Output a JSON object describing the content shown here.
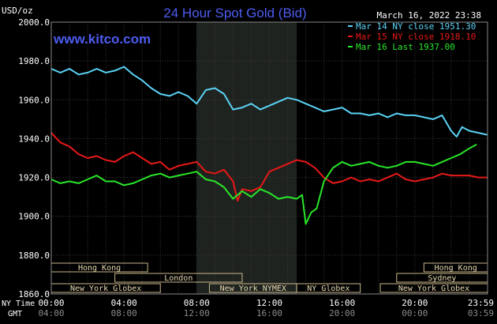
{
  "chart_data": {
    "type": "line",
    "title": "24 Hour Spot Gold (Bid)",
    "watermark": "www.kitco.com",
    "date_label": "March 16, 2022 23:38",
    "ylabel": "USD/oz",
    "ylim": [
      1860,
      2000
    ],
    "yticks": [
      2000,
      1980,
      1960,
      1940,
      1920,
      1900,
      1880,
      1860
    ],
    "ytick_labels": [
      "2000.0",
      "1980.0",
      "1960.0",
      "1940.0",
      "1920.0",
      "1900.0",
      "1880.0",
      "1860.0"
    ],
    "xlim": [
      0,
      24
    ],
    "xticks": [
      0,
      4,
      8,
      12,
      16,
      20,
      24
    ],
    "ny_time_label": "NY Time",
    "gmt_label": "GMT",
    "ny_tick_labels": [
      "00:00",
      "04:00",
      "08:00",
      "12:00",
      "16:00",
      "20:00",
      "23:59"
    ],
    "gmt_tick_labels": [
      "04:00",
      "08:00",
      "12:00",
      "16:00",
      "20:00",
      "00:00",
      "03:59"
    ],
    "highlight_range": [
      8,
      13.5
    ],
    "grid": true,
    "legend_position": "top-right",
    "series": [
      {
        "name": "Mar 14 NY close 1951.30",
        "color": "#5ad2f5",
        "x": [
          0,
          0.5,
          1,
          1.5,
          2,
          2.5,
          3,
          3.5,
          4,
          4.5,
          5,
          5.5,
          6,
          6.5,
          7,
          7.5,
          8,
          8.5,
          9,
          9.5,
          10,
          10.5,
          11,
          11.5,
          12,
          12.5,
          13,
          13.5,
          14,
          14.5,
          15,
          15.5,
          16,
          16.5,
          17,
          17.5,
          18,
          18.5,
          19,
          19.5,
          20,
          20.5,
          21,
          21.5,
          22,
          22.3,
          22.6,
          23,
          23.5,
          23.98
        ],
        "y": [
          1976,
          1974,
          1976,
          1973,
          1974,
          1976,
          1974,
          1975,
          1977,
          1973,
          1970,
          1966,
          1963,
          1962,
          1964,
          1962,
          1958,
          1965,
          1966,
          1963,
          1955,
          1956,
          1958,
          1955,
          1957,
          1959,
          1961,
          1960,
          1958,
          1956,
          1954,
          1955,
          1956,
          1953,
          1953,
          1952,
          1953,
          1951,
          1953,
          1952,
          1952,
          1951,
          1950,
          1952,
          1944,
          1941,
          1946,
          1944,
          1943,
          1942
        ]
      },
      {
        "name": "Mar 15 NY close 1918.10",
        "color": "#e81818",
        "x": [
          0,
          0.5,
          1,
          1.5,
          2,
          2.5,
          3,
          3.5,
          4,
          4.5,
          5,
          5.5,
          6,
          6.5,
          7,
          7.5,
          8,
          8.5,
          9,
          9.5,
          10,
          10.25,
          10.5,
          11,
          11.5,
          12,
          12.5,
          13,
          13.5,
          14,
          14.5,
          15,
          15.5,
          16,
          16.5,
          17,
          17.5,
          18,
          18.5,
          19,
          19.5,
          20,
          20.5,
          21,
          21.5,
          22,
          22.5,
          23,
          23.5,
          23.98
        ],
        "y": [
          1943,
          1938,
          1936,
          1932,
          1930,
          1931,
          1929,
          1928,
          1931,
          1933,
          1930,
          1927,
          1928,
          1924,
          1926,
          1927,
          1928,
          1923,
          1922,
          1924,
          1918,
          1908,
          1914,
          1913,
          1915,
          1923,
          1925,
          1927,
          1929,
          1928,
          1925,
          1920,
          1917,
          1918,
          1920,
          1918,
          1919,
          1918,
          1920,
          1922,
          1919,
          1918,
          1919,
          1920,
          1922,
          1921,
          1921,
          1921,
          1920,
          1920
        ]
      },
      {
        "name": "Mar 16 Last 1937.00",
        "color": "#29e629",
        "x": [
          0,
          0.5,
          1,
          1.5,
          2,
          2.5,
          3,
          3.5,
          4,
          4.5,
          5,
          5.5,
          6,
          6.5,
          7,
          7.5,
          8,
          8.5,
          9,
          9.5,
          10,
          10.5,
          11,
          11.5,
          12,
          12.5,
          13,
          13.5,
          13.8,
          14,
          14.3,
          14.6,
          15,
          15.5,
          16,
          16.5,
          17,
          17.5,
          18,
          18.5,
          19,
          19.5,
          20,
          20.5,
          21,
          21.5,
          22,
          22.5,
          23,
          23.4
        ],
        "y": [
          1919,
          1917,
          1918,
          1917,
          1919,
          1921,
          1918,
          1918,
          1916,
          1917,
          1919,
          1921,
          1922,
          1920,
          1921,
          1922,
          1923,
          1919,
          1918,
          1915,
          1909,
          1913,
          1910,
          1914,
          1912,
          1909,
          1910,
          1909,
          1911,
          1896,
          1902,
          1904,
          1918,
          1925,
          1928,
          1926,
          1927,
          1928,
          1926,
          1925,
          1926,
          1928,
          1928,
          1927,
          1926,
          1928,
          1930,
          1932,
          1935,
          1937
        ]
      }
    ],
    "sessions": [
      {
        "label": "Hong Kong",
        "start": 0,
        "end": 5.3,
        "row": 0
      },
      {
        "label": "London",
        "start": 3.5,
        "end": 10.5,
        "row": 1
      },
      {
        "label": "New York Globex",
        "start": 0,
        "end": 6.0,
        "row": 2
      },
      {
        "label": "New York NYMEX",
        "start": 8.7,
        "end": 13.5,
        "row": 2
      },
      {
        "label": "NY Globex",
        "start": 13.5,
        "end": 17.0,
        "row": 2
      },
      {
        "label": "New York Globex",
        "start": 18.1,
        "end": 24,
        "row": 2
      },
      {
        "label": "Hong Kong",
        "start": 20.5,
        "end": 24,
        "row": 0
      },
      {
        "label": "Sydney",
        "start": 19.0,
        "end": 24,
        "row": 1
      }
    ]
  }
}
